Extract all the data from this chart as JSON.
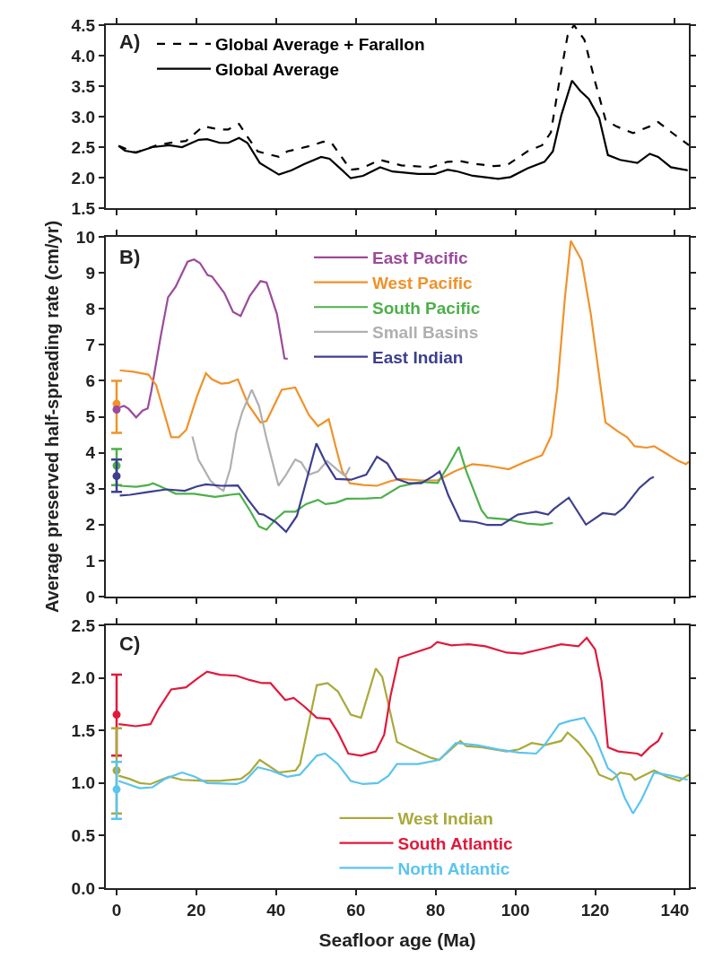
{
  "chart_data": [
    {
      "type": "line",
      "annotations": [
        "A)"
      ],
      "legend": "top left",
      "tick_labels": "y",
      "xlim": [
        -2.7,
        143.5
      ],
      "xticks": [
        0,
        20,
        40,
        60,
        80,
        100,
        120,
        140
      ],
      "ylim": [
        1.5,
        4.5
      ],
      "yticks": [
        1.5,
        {
          "value": 2,
          "label": "2.0"
        },
        2.5,
        {
          "value": 3,
          "label": "3.0"
        },
        3.5,
        {
          "value": 4,
          "label": "4.0"
        },
        4.5
      ],
      "series": [
        {
          "name": "Global Average + Farallon",
          "color": "#000000",
          "line_style": "dashed",
          "x": [
            0.5,
            4.8,
            10,
            14.3,
            17.4,
            21.7,
            25.9,
            28,
            30.7,
            32.8,
            35.4,
            40.7,
            42.8,
            49.2,
            51.8,
            53.9,
            56.6,
            58.7,
            61.3,
            66.1,
            71.4,
            78.8,
            83,
            86.2,
            89.3,
            94.6,
            97.8,
            103,
            106.7,
            108.9,
            111,
            113.1,
            114.7,
            117.3,
            120,
            122.6,
            125.3,
            129.5,
            133.7,
            135.8,
            139,
            142.7,
            143.5
          ],
          "values": [
            2.52,
            2.41,
            2.53,
            2.58,
            2.6,
            2.84,
            2.79,
            2.79,
            2.88,
            2.67,
            2.43,
            2.34,
            2.43,
            2.53,
            2.59,
            2.57,
            2.32,
            2.13,
            2.15,
            2.29,
            2.2,
            2.17,
            2.26,
            2.27,
            2.23,
            2.19,
            2.2,
            2.43,
            2.53,
            2.74,
            3.57,
            4.33,
            4.5,
            4.26,
            3.57,
            2.95,
            2.84,
            2.73,
            2.84,
            2.91,
            2.75,
            2.57,
            2.53
          ]
        },
        {
          "name": "Global Average",
          "color": "#000000",
          "line_style": "solid",
          "x": [
            0.5,
            2.1,
            4.8,
            9,
            13.2,
            16.4,
            20.6,
            22.7,
            25.9,
            28,
            30.7,
            32.8,
            35.9,
            40.7,
            43.9,
            47,
            51.3,
            53.4,
            56.6,
            58.7,
            61.8,
            66.1,
            69.2,
            75.6,
            79.8,
            83,
            85.6,
            89.3,
            95.7,
            98.8,
            103,
            107.3,
            109.4,
            111.5,
            114.2,
            116.3,
            118.4,
            121,
            123.2,
            126.3,
            130.6,
            133.7,
            135.8,
            139,
            143.2
          ],
          "values": [
            2.52,
            2.44,
            2.41,
            2.5,
            2.53,
            2.5,
            2.62,
            2.63,
            2.57,
            2.57,
            2.65,
            2.57,
            2.24,
            2.05,
            2.12,
            2.22,
            2.34,
            2.31,
            2.12,
            1.99,
            2.03,
            2.17,
            2.1,
            2.06,
            2.06,
            2.13,
            2.1,
            2.03,
            1.98,
            2.01,
            2.15,
            2.26,
            2.43,
            3.02,
            3.59,
            3.42,
            3.29,
            2.98,
            2.37,
            2.29,
            2.24,
            2.39,
            2.34,
            2.17,
            2.12
          ]
        }
      ]
    },
    {
      "type": "line",
      "annotations": [
        "B)"
      ],
      "legend": "top",
      "tick_labels": "y",
      "ylabel": "Average preserved half-spreading rate (cm/yr)",
      "xlim": [
        -2.7,
        143.5
      ],
      "xticks": [
        0,
        20,
        40,
        60,
        80,
        100,
        120,
        140
      ],
      "ylim": [
        0,
        10
      ],
      "yticks": [
        0,
        1,
        2,
        3,
        4,
        5,
        6,
        7,
        8,
        9,
        10
      ],
      "series": [
        {
          "name": "East Pacific",
          "color": "#9b4a9b",
          "line_style": "solid",
          "x": [
            0.8,
            1.9,
            3,
            4.9,
            6.5,
            7.8,
            8.7,
            11,
            12.9,
            14.8,
            17.8,
            19.4,
            20.9,
            22.8,
            23.9,
            27,
            29.2,
            31.1,
            33.4,
            36.1,
            37.6,
            40.2,
            42.1,
            42.9
          ],
          "values": [
            5.26,
            5.3,
            5.22,
            4.98,
            5.17,
            5.23,
            5.71,
            7.2,
            8.32,
            8.61,
            9.31,
            9.37,
            9.27,
            8.94,
            8.9,
            8.44,
            7.91,
            7.8,
            8.36,
            8.77,
            8.73,
            7.86,
            6.62,
            6.61
          ]
        },
        {
          "name": "West Pacific",
          "color": "#f0922a",
          "line_style": "solid",
          "x": [
            0.8,
            4.2,
            8,
            9.9,
            13.7,
            15.6,
            17.5,
            20.1,
            22.4,
            23.9,
            26.2,
            28.1,
            30.4,
            33,
            36.1,
            37.6,
            41.4,
            44.8,
            48.2,
            50.5,
            53.2,
            55,
            56.6,
            58.5,
            61.9,
            65.3,
            68.7,
            71,
            76.4,
            80.5,
            84.7,
            89.2,
            93,
            98.3,
            102.1,
            106.7,
            109,
            110.5,
            112.4,
            113.9,
            116.6,
            118.9,
            122.6,
            125.7,
            128,
            129.9,
            132.9,
            134.8,
            137.9,
            140.9,
            142.8,
            143.5
          ],
          "values": [
            6.29,
            6.25,
            6.17,
            5.88,
            4.43,
            4.43,
            4.64,
            5.55,
            6.21,
            6.04,
            5.92,
            5.94,
            6.04,
            5.34,
            4.84,
            4.88,
            5.75,
            5.81,
            5.05,
            4.74,
            4.93,
            4.14,
            3.48,
            3.15,
            3.1,
            3.08,
            3.21,
            3.27,
            3.23,
            3.23,
            3.48,
            3.68,
            3.64,
            3.54,
            3.73,
            3.93,
            4.47,
            5.79,
            8.28,
            9.89,
            9.35,
            7.86,
            4.84,
            4.59,
            4.43,
            4.18,
            4.14,
            4.18,
            3.97,
            3.77,
            3.68,
            3.75
          ]
        },
        {
          "name": "South Pacific",
          "color": "#4cb04a",
          "line_style": "solid",
          "x": [
            0.8,
            4.9,
            8,
            9.1,
            11,
            14.8,
            19.4,
            22.4,
            24.7,
            28.5,
            30.8,
            33.4,
            35.7,
            37.6,
            39.9,
            42.1,
            44.8,
            47.5,
            50.5,
            52.4,
            55,
            57.7,
            62.6,
            66.4,
            71,
            76.4,
            80.5,
            83.2,
            85.8,
            87.7,
            91.5,
            93,
            97.6,
            102.9,
            106.7,
            109.4
          ],
          "values": [
            3.08,
            3.05,
            3.1,
            3.15,
            3.06,
            2.86,
            2.86,
            2.81,
            2.77,
            2.83,
            2.86,
            2.4,
            1.95,
            1.86,
            2.15,
            2.36,
            2.36,
            2.57,
            2.69,
            2.57,
            2.61,
            2.72,
            2.73,
            2.75,
            3.06,
            3.19,
            3.16,
            3.64,
            4.16,
            3.48,
            2.4,
            2.19,
            2.15,
            2.03,
            2,
            2.05
          ]
        },
        {
          "name": "Small Basins",
          "color": "#aeb0b2",
          "line_style": "solid",
          "x": [
            19,
            20.5,
            21.6,
            23.5,
            25.1,
            26.8,
            28.5,
            30,
            31.5,
            33.9,
            35.7,
            37.6,
            40.6,
            42.5,
            44.8,
            46.3,
            48.2,
            50.5,
            52.8,
            55.4,
            57.3,
            58.5
          ],
          "values": [
            4.45,
            3.81,
            3.6,
            3.23,
            3.06,
            2.94,
            3.56,
            4.55,
            5.13,
            5.75,
            5.3,
            4.39,
            3.08,
            3.39,
            3.81,
            3.73,
            3.39,
            3.48,
            3.77,
            3.52,
            3.35,
            3.6
          ]
        },
        {
          "name": "East Indian",
          "color": "#3d3f8f",
          "line_style": "solid",
          "x": [
            0.8,
            3.4,
            8,
            12.5,
            17.1,
            20.1,
            22.4,
            26.2,
            30.4,
            33,
            35.7,
            36.8,
            39.9,
            42.5,
            45.2,
            47.8,
            50.1,
            52.4,
            55,
            58.8,
            62.6,
            65.3,
            67.9,
            70.2,
            73.3,
            76.4,
            79.4,
            81,
            83.2,
            86.2,
            90.1,
            93,
            96.5,
            100.6,
            102.9,
            105.2,
            108.2,
            109.7,
            113.4,
            117.7,
            121.9,
            125,
            127.3,
            131.1,
            133.7,
            134.7
          ],
          "values": [
            2.81,
            2.83,
            2.91,
            2.98,
            2.94,
            3.06,
            3.12,
            3.08,
            3.09,
            2.69,
            2.3,
            2.28,
            2.07,
            1.8,
            2.24,
            3.31,
            4.26,
            3.73,
            3.27,
            3.25,
            3.39,
            3.89,
            3.7,
            3.27,
            3.15,
            3.15,
            3.35,
            3.48,
            2.81,
            2.11,
            2.07,
            1.99,
            1.99,
            2.28,
            2.32,
            2.36,
            2.28,
            2.44,
            2.75,
            2,
            2.32,
            2.28,
            2.48,
            3.02,
            3.27,
            3.33
          ]
        },
        {
          "type": "scatter",
          "marker": "circle",
          "color": "#f0922a",
          "x": [
            0
          ],
          "values": [
            5.36
          ],
          "errors": [
            [
              4.55,
              6.0
            ]
          ]
        },
        {
          "type": "scatter",
          "marker": "circle",
          "color": "#9b4a9b",
          "x": [
            0
          ],
          "values": [
            5.2
          ]
        },
        {
          "type": "scatter",
          "marker": "circle",
          "color": "#4cb04a",
          "x": [
            0
          ],
          "values": [
            3.64
          ],
          "errors": [
            [
              3.1,
              4.1
            ]
          ]
        },
        {
          "type": "scatter",
          "marker": "circle",
          "color": "#3d3f8f",
          "x": [
            0
          ],
          "values": [
            3.35
          ],
          "errors": [
            [
              2.91,
              3.81
            ]
          ]
        }
      ]
    },
    {
      "type": "line",
      "annotations": [
        "C)"
      ],
      "legend": "bottom",
      "xlabel": "Seafloor age (Ma)",
      "xlim": [
        -2.7,
        143.5
      ],
      "xticks": [
        0,
        20,
        40,
        60,
        80,
        100,
        120,
        140
      ],
      "ylim": [
        0,
        2.5
      ],
      "yticks": [
        {
          "value": 0,
          "label": "0.0"
        },
        0.5,
        {
          "value": 1,
          "label": "1.0"
        },
        1.5,
        {
          "value": 2,
          "label": "2.0"
        },
        2.5
      ],
      "series": [
        {
          "name": "West Indian",
          "color": "#a9a93a",
          "line_style": "solid",
          "x": [
            0.5,
            3.2,
            5.8,
            8.5,
            13.2,
            16.4,
            21.7,
            25.9,
            31.2,
            33.3,
            35.9,
            40.7,
            44.9,
            46,
            50.2,
            52.9,
            55.5,
            58.7,
            61.3,
            65,
            66.6,
            70.3,
            73.5,
            78.8,
            80.9,
            86.2,
            87.7,
            91.4,
            97.8,
            100.9,
            104.1,
            107.3,
            111.5,
            113.1,
            115.8,
            119,
            121,
            124.2,
            126.3,
            129,
            130,
            131.6,
            134.8,
            137.9,
            141.1,
            143.5
          ],
          "values": [
            1.07,
            1.04,
            1,
            0.99,
            1.06,
            1.03,
            1.02,
            1.02,
            1.04,
            1.1,
            1.22,
            1.1,
            1.12,
            1.18,
            1.93,
            1.95,
            1.87,
            1.65,
            1.62,
            2.09,
            2.01,
            1.39,
            1.33,
            1.24,
            1.22,
            1.4,
            1.35,
            1.34,
            1.3,
            1.32,
            1.38,
            1.36,
            1.4,
            1.48,
            1.39,
            1.24,
            1.08,
            1.03,
            1.1,
            1.08,
            1.03,
            1.06,
            1.12,
            1.06,
            1.02,
            1.08
          ]
        },
        {
          "name": "South Atlantic",
          "color": "#e0193b",
          "line_style": "solid",
          "x": [
            0.5,
            4.8,
            8.5,
            10.6,
            13.7,
            17.4,
            20.1,
            22.7,
            25.9,
            30.1,
            33.3,
            36.5,
            38.6,
            42.3,
            44.4,
            47,
            50.2,
            53.4,
            55.5,
            58.1,
            61.3,
            65,
            67.1,
            68.7,
            70.8,
            75.6,
            78.8,
            80.4,
            84,
            88.3,
            92.5,
            97.8,
            101.7,
            107.3,
            111.5,
            115.8,
            117.9,
            120,
            121.6,
            123.2,
            125.8,
            130.6,
            131.6,
            133.7,
            135.8,
            136.9
          ],
          "values": [
            1.56,
            1.54,
            1.56,
            1.71,
            1.89,
            1.91,
            1.99,
            2.06,
            2.03,
            2.02,
            1.98,
            1.95,
            1.95,
            1.79,
            1.81,
            1.73,
            1.62,
            1.61,
            1.48,
            1.28,
            1.26,
            1.3,
            1.46,
            1.83,
            2.19,
            2.25,
            2.29,
            2.34,
            2.31,
            2.32,
            2.3,
            2.24,
            2.23,
            2.28,
            2.32,
            2.3,
            2.38,
            2.27,
            1.97,
            1.34,
            1.3,
            1.28,
            1.26,
            1.34,
            1.4,
            1.48
          ]
        },
        {
          "name": "North Atlantic",
          "color": "#5bc4ef",
          "line_style": "solid",
          "x": [
            0.5,
            5.8,
            9,
            12.2,
            16.4,
            19.6,
            22.7,
            30.1,
            32.2,
            35.4,
            38.6,
            42.8,
            46,
            50.2,
            52.3,
            55.5,
            58.7,
            61.8,
            65.5,
            68.2,
            70.3,
            75.6,
            80.9,
            85.1,
            90.4,
            95.7,
            100.9,
            105.2,
            107.3,
            111,
            113.6,
            117.3,
            120,
            123.2,
            125.3,
            127.4,
            129.5,
            131.6,
            134.8,
            139,
            143.2
          ],
          "values": [
            1.02,
            0.95,
            0.96,
            1.04,
            1.1,
            1.06,
            1,
            0.99,
            1.02,
            1.15,
            1.12,
            1.06,
            1.08,
            1.26,
            1.28,
            1.18,
            1.02,
            0.99,
            1,
            1.07,
            1.18,
            1.18,
            1.22,
            1.38,
            1.36,
            1.32,
            1.29,
            1.28,
            1.36,
            1.56,
            1.59,
            1.62,
            1.44,
            1.14,
            1.08,
            0.86,
            0.71,
            0.84,
            1.1,
            1.07,
            1.03
          ]
        },
        {
          "type": "scatter",
          "marker": "circle",
          "color": "#e0193b",
          "x": [
            0
          ],
          "values": [
            1.65
          ],
          "errors": [
            [
              1.26,
              2.03
            ]
          ]
        },
        {
          "type": "scatter",
          "marker": "circle",
          "color": "#a9a93a",
          "x": [
            0
          ],
          "values": [
            1.12
          ],
          "errors": [
            [
              0.71,
              1.52
            ]
          ]
        },
        {
          "type": "scatter",
          "marker": "circle",
          "color": "#5bc4ef",
          "x": [
            0
          ],
          "values": [
            0.94
          ],
          "errors": [
            [
              0.66,
              1.2
            ]
          ]
        }
      ]
    }
  ]
}
